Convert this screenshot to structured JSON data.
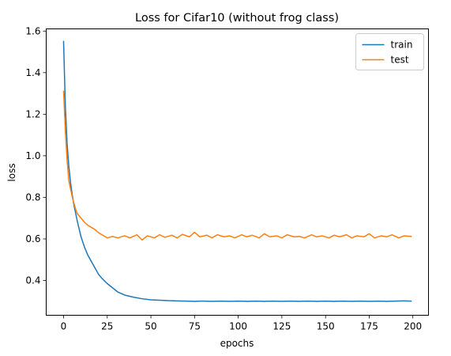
{
  "chart_data": {
    "type": "line",
    "title": "Loss for Cifar10 (without frog class)",
    "xlabel": "epochs",
    "ylabel": "loss",
    "xlim": [
      -9.95,
      208.95
    ],
    "ylim": [
      0.2328,
      1.6105
    ],
    "xticks": [
      0,
      25,
      50,
      75,
      100,
      125,
      150,
      175,
      200
    ],
    "yticks": [
      0.4,
      0.6,
      0.8,
      1.0,
      1.2,
      1.4,
      1.6
    ],
    "xtick_labels": [
      "0",
      "25",
      "50",
      "75",
      "100",
      "125",
      "150",
      "175",
      "200"
    ],
    "ytick_labels": [
      "0.4",
      "0.6",
      "0.8",
      "1.0",
      "1.2",
      "1.4",
      "1.6"
    ],
    "grid": false,
    "legend_position": "top-right",
    "series": [
      {
        "name": "train",
        "color": "#1f77b4",
        "x": [
          0,
          1,
          2,
          3,
          4,
          5,
          6,
          7,
          8,
          9,
          10,
          12,
          14,
          16,
          18,
          20,
          22,
          25,
          28,
          31,
          35,
          40,
          45,
          50,
          55,
          60,
          65,
          70,
          75,
          80,
          85,
          90,
          95,
          100,
          105,
          110,
          115,
          120,
          125,
          130,
          135,
          140,
          145,
          150,
          155,
          160,
          165,
          170,
          175,
          180,
          185,
          190,
          195,
          199
        ],
        "y": [
          1.55,
          1.24,
          1.06,
          0.95,
          0.87,
          0.81,
          0.76,
          0.72,
          0.68,
          0.645,
          0.61,
          0.56,
          0.52,
          0.49,
          0.46,
          0.43,
          0.41,
          0.385,
          0.365,
          0.345,
          0.33,
          0.32,
          0.312,
          0.307,
          0.305,
          0.303,
          0.302,
          0.301,
          0.3,
          0.301,
          0.3,
          0.301,
          0.3,
          0.301,
          0.3,
          0.301,
          0.3,
          0.301,
          0.3,
          0.301,
          0.3,
          0.301,
          0.3,
          0.301,
          0.3,
          0.301,
          0.3,
          0.301,
          0.3,
          0.301,
          0.3,
          0.301,
          0.302,
          0.301
        ]
      },
      {
        "name": "test",
        "color": "#ff7f0e",
        "x": [
          0,
          1,
          2,
          3,
          4,
          5,
          6,
          7,
          8,
          10,
          12,
          14,
          16,
          18,
          20,
          22,
          25,
          28,
          31,
          35,
          38,
          42,
          45,
          48,
          52,
          55,
          58,
          62,
          65,
          68,
          72,
          75,
          78,
          82,
          85,
          88,
          92,
          95,
          98,
          102,
          105,
          108,
          112,
          115,
          118,
          122,
          125,
          128,
          132,
          135,
          138,
          142,
          145,
          148,
          152,
          155,
          158,
          162,
          165,
          168,
          172,
          175,
          178,
          182,
          185,
          188,
          192,
          195,
          199
        ],
        "y": [
          1.31,
          1.12,
          0.98,
          0.88,
          0.84,
          0.8,
          0.77,
          0.74,
          0.72,
          0.7,
          0.68,
          0.665,
          0.655,
          0.645,
          0.63,
          0.62,
          0.605,
          0.612,
          0.605,
          0.615,
          0.605,
          0.62,
          0.595,
          0.615,
          0.605,
          0.62,
          0.608,
          0.618,
          0.605,
          0.622,
          0.61,
          0.632,
          0.61,
          0.618,
          0.605,
          0.62,
          0.61,
          0.615,
          0.605,
          0.62,
          0.61,
          0.618,
          0.605,
          0.625,
          0.61,
          0.615,
          0.605,
          0.62,
          0.61,
          0.612,
          0.605,
          0.62,
          0.61,
          0.615,
          0.605,
          0.618,
          0.61,
          0.62,
          0.605,
          0.615,
          0.61,
          0.625,
          0.605,
          0.615,
          0.61,
          0.62,
          0.605,
          0.615,
          0.612
        ]
      }
    ]
  }
}
